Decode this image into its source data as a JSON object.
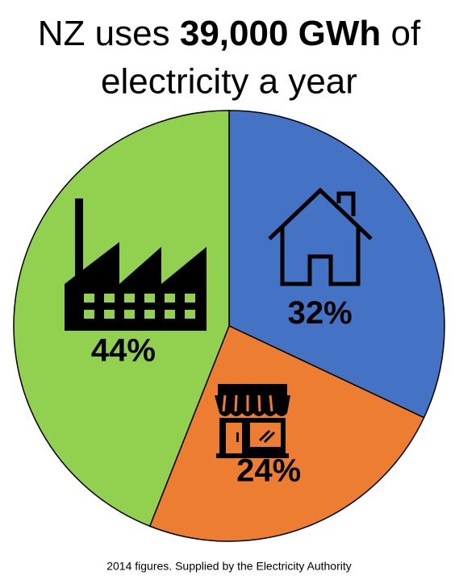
{
  "chart_data": {
    "type": "pie",
    "title": {
      "lead": "NZ uses",
      "bold": "39,000 GWh",
      "tail": "of",
      "line2": "electricity a year"
    },
    "values": [
      32,
      24,
      44
    ],
    "value_labels": [
      "32%",
      "24%",
      "44%"
    ],
    "colors": [
      "#4472c4",
      "#ed7d31",
      "#92d050"
    ],
    "footnote": "2014 figures. Supplied by the Electricity Authority"
  }
}
